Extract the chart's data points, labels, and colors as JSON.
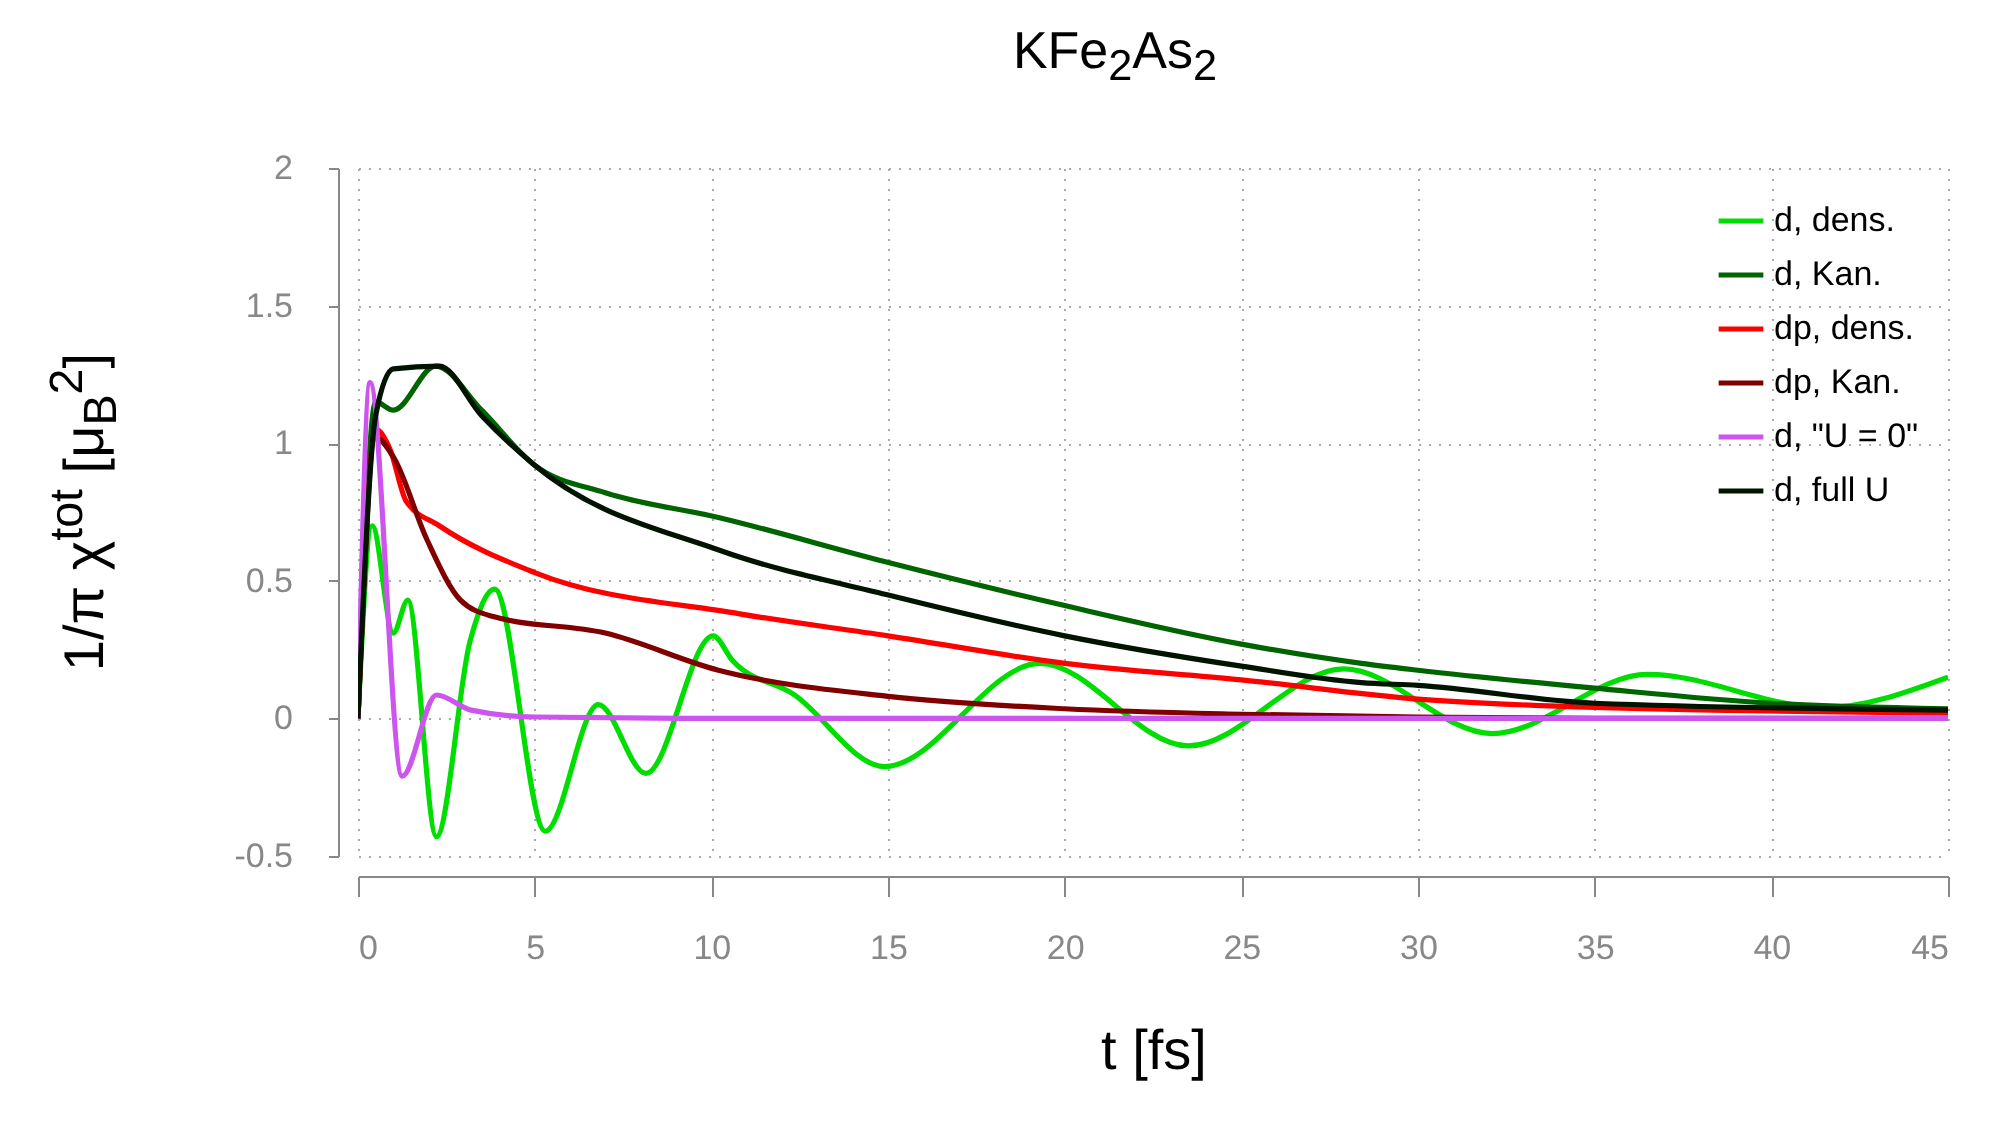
{
  "chart_data": {
    "type": "line",
    "title": "KFe$_{2}$As$_{2}$",
    "xlabel": "t [fs]",
    "ylabel": "1/π χ$^{tot}$ [μ$_{B}$$^{2}$]",
    "xlim": [
      0,
      45
    ],
    "ylim": [
      -0.5,
      2
    ],
    "xticks": [
      0,
      5,
      10,
      15,
      20,
      25,
      30,
      35,
      40,
      45
    ],
    "yticks": [
      -0.5,
      0,
      0.5,
      1,
      1.5,
      2
    ],
    "grid": true,
    "legend": "top right",
    "line_style": "solid",
    "series": [
      {
        "name": "d, dens.",
        "color": "#00dd00",
        "x": [
          0,
          0.4,
          1.0,
          1.41,
          2.22,
          3.17,
          3.87,
          5.3,
          6.8,
          8.15,
          10.05,
          10.6,
          12.3,
          14.9,
          19.3,
          23.5,
          27.9,
          32.1,
          36.5,
          41.5,
          45
        ],
        "values": [
          0,
          0.7,
          0.31,
          0.43,
          -0.43,
          0.28,
          0.47,
          -0.41,
          0.05,
          -0.2,
          0.3,
          0.21,
          0.09,
          -0.175,
          0.2,
          -0.1,
          0.18,
          -0.055,
          0.16,
          0.04,
          0.15
        ]
      },
      {
        "name": "d, Kan.",
        "color": "#006400",
        "x": [
          0,
          0.5,
          1.0,
          2.2,
          3.5,
          5,
          7,
          10.2,
          14.9,
          20,
          25,
          28.4,
          30,
          35,
          40,
          45
        ],
        "values": [
          0,
          1.15,
          1.12,
          1.28,
          1.12,
          0.92,
          0.82,
          0.73,
          0.57,
          0.41,
          0.27,
          0.2,
          0.175,
          0.11,
          0.055,
          0.035
        ]
      },
      {
        "name": "dp, dens.",
        "color": "#ff0000",
        "x": [
          0,
          0.5,
          0.9,
          1.36,
          2.3,
          5,
          10.8,
          15,
          20,
          25,
          30,
          35,
          45
        ],
        "values": [
          0,
          1.05,
          0.98,
          0.79,
          0.7,
          0.53,
          0.38,
          0.3,
          0.2,
          0.14,
          0.07,
          0.04,
          0.02
        ]
      },
      {
        "name": "dp, Kan.",
        "color": "#800000",
        "x": [
          0,
          0.5,
          1.0,
          1.95,
          2.9,
          3.83,
          7,
          10.2,
          15,
          20,
          25,
          30,
          35,
          45
        ],
        "values": [
          0,
          1.02,
          0.95,
          0.65,
          0.43,
          0.37,
          0.31,
          0.175,
          0.08,
          0.035,
          0.015,
          0.005,
          0,
          0
        ]
      },
      {
        "name": "d, \"U = 0\"",
        "color": "#cc55ee",
        "x": [
          0,
          0.34,
          1.25,
          2.22,
          3.2,
          5,
          10,
          45
        ],
        "values": [
          0,
          1.22,
          -0.21,
          0.085,
          0.03,
          0.005,
          0,
          0
        ]
      },
      {
        "name": "d, full U",
        "color": "#001400",
        "x": [
          0,
          0.5,
          1.0,
          2.3,
          3.5,
          5,
          10.25,
          14.95,
          20,
          25,
          28.4,
          30,
          35,
          45
        ],
        "values": [
          0,
          1.1,
          1.27,
          1.28,
          1.1,
          0.92,
          0.61,
          0.45,
          0.3,
          0.19,
          0.13,
          0.12,
          0.055,
          0.03
        ]
      }
    ]
  }
}
